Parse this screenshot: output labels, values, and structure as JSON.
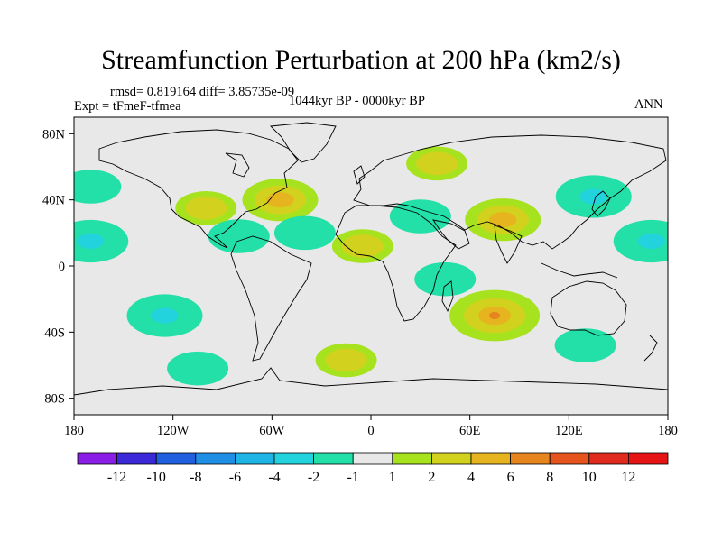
{
  "title": "Streamfunction Perturbation at 200 hPa (km2/s)",
  "stats": "rmsd= 0.819164 diff= 3.85735e-09",
  "experiment": "Expt = tFmeF-tfmea",
  "period": "1044kyr BP - 0000kyr BP",
  "season": "ANN",
  "lat_ticks": [
    "80N",
    "40N",
    "0",
    "40S",
    "80S"
  ],
  "lon_ticks": [
    "180",
    "120W",
    "60W",
    "0",
    "60E",
    "120E",
    "180"
  ],
  "colorbar": {
    "labels": [
      "-12",
      "-10",
      "-8",
      "-6",
      "-4",
      "-2",
      "-1",
      "1",
      "2",
      "4",
      "6",
      "8",
      "10",
      "12"
    ],
    "colors": [
      "#8a1ee6",
      "#3b28d8",
      "#1f5fe0",
      "#1f8fe6",
      "#1fb4e6",
      "#22d2dc",
      "#22e0a8",
      "#e8e8e8",
      "#a6e21e",
      "#d2d21e",
      "#e6b41e",
      "#e6841e",
      "#e6541e",
      "#e02a1e",
      "#e61414"
    ]
  },
  "chart_data": {
    "type": "contour-map",
    "title": "Streamfunction Perturbation at 200 hPa (km2/s)",
    "lon_range": [
      -180,
      180
    ],
    "lat_range": [
      -90,
      90
    ],
    "anomalies": [
      {
        "region": "North Atlantic",
        "lon": -55,
        "lat": 40,
        "value": 4
      },
      {
        "region": "North Atlantic west",
        "lon": -100,
        "lat": 35,
        "value": 2
      },
      {
        "region": "Siberia",
        "lon": 40,
        "lat": 62,
        "value": 2
      },
      {
        "region": "NW Pacific / Japan",
        "lon": 135,
        "lat": 42,
        "value": -4
      },
      {
        "region": "Tibet / South Asia",
        "lon": 80,
        "lat": 28,
        "value": 4
      },
      {
        "region": "Middle East",
        "lon": 30,
        "lat": 30,
        "value": -2
      },
      {
        "region": "East Pacific tropics",
        "lon": -170,
        "lat": 15,
        "value": -4
      },
      {
        "region": "Central Pacific (east)",
        "lon": 170,
        "lat": 15,
        "value": -4
      },
      {
        "region": "Caribbean",
        "lon": -80,
        "lat": 18,
        "value": -2
      },
      {
        "region": "Central Atlantic",
        "lon": -40,
        "lat": 20,
        "value": -2
      },
      {
        "region": "West Africa",
        "lon": -5,
        "lat": 12,
        "value": 2
      },
      {
        "region": "East Africa",
        "lon": 45,
        "lat": -8,
        "value": -2
      },
      {
        "region": "South Indian Ocean",
        "lon": 75,
        "lat": -30,
        "value": 6
      },
      {
        "region": "South Pacific",
        "lon": -125,
        "lat": -30,
        "value": -4
      },
      {
        "region": "Southern Ocean Pacific",
        "lon": -105,
        "lat": -62,
        "value": -2
      },
      {
        "region": "Southern Ocean Atlantic",
        "lon": -15,
        "lat": -57,
        "value": 2
      },
      {
        "region": "Southern Ocean Indian",
        "lon": 130,
        "lat": -48,
        "value": -2
      },
      {
        "region": "North Pacific east",
        "lon": -170,
        "lat": 48,
        "value": -2
      }
    ]
  }
}
